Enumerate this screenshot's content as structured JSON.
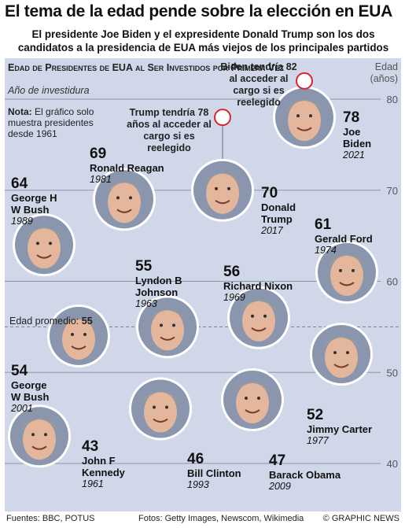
{
  "title": "El tema de la edad pende sobre la elección en EUA",
  "subtitle": "El presidente Joe Biden y el expresidente Donald Trump son los dos candidatos a la presidencia de EUA más viejos de los principales partidos",
  "panel": {
    "heading": "Edad de Presidentes de EUA al Ser Investidos por Primera Vez",
    "subheading": "Año de investidura",
    "note_label": "Nota:",
    "note_text": "El gráfico solo muestra presidentes desde 1961",
    "y_axis_label": "Edad (años)",
    "average_label": "Edad promedio:",
    "average_value": "55",
    "callout_biden": "Biden tendría 82 al acceder al cargo si es reelegido",
    "callout_trump": "Trump tendría 78 años al acceder al cargo si es reelegido"
  },
  "footer": {
    "sources": "Fuentes: BBC, POTUS",
    "photos": "Fotos: Getty Images, Newscom, Wikimedia",
    "credit": "© GRAPHIC NEWS"
  },
  "colors": {
    "panel_bg": "#cfd7e8",
    "callout_ring": "#d9262c",
    "grid": "#8d95a8"
  },
  "chart_data": {
    "type": "scatter",
    "ylim": [
      40,
      80
    ],
    "y_ticks": [
      40,
      50,
      60,
      70,
      80
    ],
    "average": 55,
    "points": [
      {
        "age": 64,
        "name": "George H W Bush",
        "year": "1989"
      },
      {
        "age": 69,
        "name": "Ronald Reagan",
        "year": "1981"
      },
      {
        "age": 55,
        "name": "Lyndon B Johnson",
        "year": "1963"
      },
      {
        "age": 54,
        "name": "George W Bush",
        "year": "2001"
      },
      {
        "age": 43,
        "name": "John F Kennedy",
        "year": "1961"
      },
      {
        "age": 46,
        "name": "Bill Clinton",
        "year": "1993"
      },
      {
        "age": 70,
        "name": "Donald Trump",
        "year": "2017"
      },
      {
        "age": 56,
        "name": "Richard Nixon",
        "year": "1969"
      },
      {
        "age": 47,
        "name": "Barack Obama",
        "year": "2009"
      },
      {
        "age": 78,
        "name": "Joe Biden",
        "year": "2021"
      },
      {
        "age": 61,
        "name": "Gerald Ford",
        "year": "1974"
      },
      {
        "age": 52,
        "name": "Jimmy Carter",
        "year": "1977"
      }
    ],
    "projected": [
      {
        "age": 82,
        "name": "Joe Biden"
      },
      {
        "age": 78,
        "name": "Donald Trump"
      }
    ]
  }
}
